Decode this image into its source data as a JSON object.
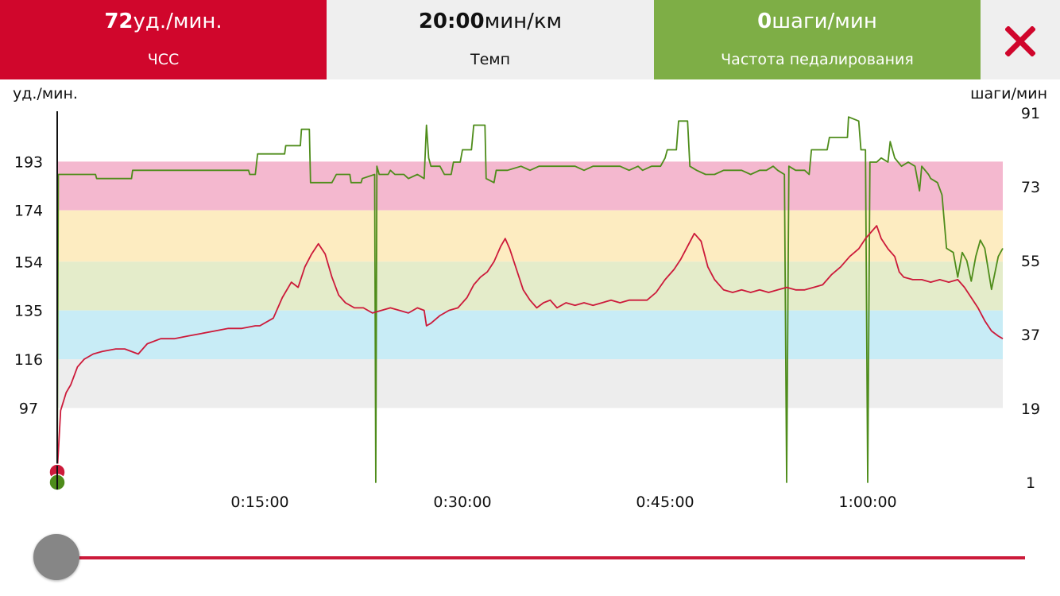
{
  "header": {
    "hr": {
      "value": "72",
      "unit": "уд./мин.",
      "label": "ЧСС",
      "color": "#d0062c"
    },
    "pace": {
      "value": "20:00",
      "unit": "мин/км",
      "label": "Темп",
      "color": "#efefef"
    },
    "cadence": {
      "value": "0",
      "unit": "шаги/мин",
      "label": "Частота педалирования",
      "color": "#7eae46"
    },
    "close_icon": "close-x-icon",
    "close_color": "#d0062c"
  },
  "slider": {
    "position": 0
  },
  "chart_data": {
    "type": "line",
    "left_axis_label": "уд./мин.",
    "right_axis_label": "шаги/мин",
    "left_ticks": [
      193,
      174,
      154,
      135,
      116,
      97
    ],
    "right_ticks": [
      91,
      73,
      55,
      37,
      19,
      1
    ],
    "ylim_left": [
      68,
      212
    ],
    "ylim_right": [
      1,
      91
    ],
    "x_ticks": [
      "0:15:00",
      "0:30:00",
      "0:45:00",
      "1:00:00"
    ],
    "x_tick_seconds": [
      900,
      1800,
      2700,
      3600
    ],
    "xlim_seconds": [
      0,
      4200
    ],
    "zones": [
      {
        "from": 174,
        "to": 193,
        "color": "#f4b8cf"
      },
      {
        "from": 154,
        "to": 174,
        "color": "#fdecc1"
      },
      {
        "from": 135,
        "to": 154,
        "color": "#e4ecca"
      },
      {
        "from": 116,
        "to": 135,
        "color": "#c8ecf6"
      },
      {
        "from": 97,
        "to": 116,
        "color": "#ededed"
      }
    ],
    "series": [
      {
        "key": "hr",
        "color": "#cc1a3a",
        "axis": "left",
        "points": [
          [
            0,
            72
          ],
          [
            15,
            96
          ],
          [
            40,
            103
          ],
          [
            60,
            106
          ],
          [
            90,
            113
          ],
          [
            120,
            116
          ],
          [
            160,
            118
          ],
          [
            200,
            119
          ],
          [
            260,
            120
          ],
          [
            300,
            120
          ],
          [
            360,
            118
          ],
          [
            400,
            122
          ],
          [
            460,
            124
          ],
          [
            520,
            124
          ],
          [
            580,
            125
          ],
          [
            640,
            126
          ],
          [
            700,
            127
          ],
          [
            760,
            128
          ],
          [
            820,
            128
          ],
          [
            880,
            129
          ],
          [
            900,
            129
          ],
          [
            960,
            132
          ],
          [
            1000,
            140
          ],
          [
            1040,
            146
          ],
          [
            1070,
            144
          ],
          [
            1100,
            152
          ],
          [
            1130,
            157
          ],
          [
            1160,
            161
          ],
          [
            1190,
            157
          ],
          [
            1220,
            148
          ],
          [
            1250,
            141
          ],
          [
            1280,
            138
          ],
          [
            1320,
            136
          ],
          [
            1360,
            136
          ],
          [
            1400,
            134
          ],
          [
            1440,
            135
          ],
          [
            1480,
            136
          ],
          [
            1520,
            135
          ],
          [
            1560,
            134
          ],
          [
            1600,
            136
          ],
          [
            1630,
            135
          ],
          [
            1640,
            129
          ],
          [
            1660,
            130
          ],
          [
            1700,
            133
          ],
          [
            1740,
            135
          ],
          [
            1780,
            136
          ],
          [
            1820,
            140
          ],
          [
            1850,
            145
          ],
          [
            1880,
            148
          ],
          [
            1910,
            150
          ],
          [
            1940,
            154
          ],
          [
            1970,
            160
          ],
          [
            1990,
            163
          ],
          [
            2010,
            159
          ],
          [
            2040,
            151
          ],
          [
            2070,
            143
          ],
          [
            2100,
            139
          ],
          [
            2130,
            136
          ],
          [
            2160,
            138
          ],
          [
            2190,
            139
          ],
          [
            2220,
            136
          ],
          [
            2260,
            138
          ],
          [
            2300,
            137
          ],
          [
            2340,
            138
          ],
          [
            2380,
            137
          ],
          [
            2420,
            138
          ],
          [
            2460,
            139
          ],
          [
            2500,
            138
          ],
          [
            2540,
            139
          ],
          [
            2580,
            139
          ],
          [
            2620,
            139
          ],
          [
            2660,
            142
          ],
          [
            2700,
            147
          ],
          [
            2740,
            151
          ],
          [
            2770,
            155
          ],
          [
            2800,
            160
          ],
          [
            2830,
            165
          ],
          [
            2860,
            162
          ],
          [
            2890,
            152
          ],
          [
            2920,
            147
          ],
          [
            2960,
            143
          ],
          [
            3000,
            142
          ],
          [
            3040,
            143
          ],
          [
            3080,
            142
          ],
          [
            3120,
            143
          ],
          [
            3160,
            142
          ],
          [
            3200,
            143
          ],
          [
            3240,
            144
          ],
          [
            3280,
            143
          ],
          [
            3320,
            143
          ],
          [
            3360,
            144
          ],
          [
            3400,
            145
          ],
          [
            3440,
            149
          ],
          [
            3480,
            152
          ],
          [
            3520,
            156
          ],
          [
            3560,
            159
          ],
          [
            3590,
            163
          ],
          [
            3620,
            166
          ],
          [
            3640,
            168
          ],
          [
            3660,
            163
          ],
          [
            3690,
            159
          ],
          [
            3720,
            156
          ],
          [
            3740,
            150
          ],
          [
            3760,
            148
          ],
          [
            3800,
            147
          ],
          [
            3840,
            147
          ],
          [
            3880,
            146
          ],
          [
            3920,
            147
          ],
          [
            3960,
            146
          ],
          [
            4000,
            147
          ],
          [
            4030,
            144
          ],
          [
            4060,
            140
          ],
          [
            4090,
            136
          ],
          [
            4120,
            131
          ],
          [
            4150,
            127
          ],
          [
            4180,
            125
          ],
          [
            4200,
            124
          ]
        ]
      },
      {
        "key": "cadence",
        "color": "#4e8c1a",
        "axis": "right",
        "points": [
          [
            0,
            1
          ],
          [
            5,
            76
          ],
          [
            30,
            76
          ],
          [
            170,
            76
          ],
          [
            175,
            75
          ],
          [
            330,
            75
          ],
          [
            335,
            77
          ],
          [
            850,
            77
          ],
          [
            855,
            76
          ],
          [
            880,
            76
          ],
          [
            890,
            81
          ],
          [
            1010,
            81
          ],
          [
            1015,
            83
          ],
          [
            1080,
            83
          ],
          [
            1085,
            87
          ],
          [
            1120,
            87
          ],
          [
            1125,
            74
          ],
          [
            1220,
            74
          ],
          [
            1240,
            76
          ],
          [
            1300,
            76
          ],
          [
            1305,
            74
          ],
          [
            1350,
            74
          ],
          [
            1355,
            75
          ],
          [
            1410,
            76
          ],
          [
            1415,
            1
          ],
          [
            1420,
            78
          ],
          [
            1430,
            76
          ],
          [
            1470,
            76
          ],
          [
            1480,
            77
          ],
          [
            1500,
            76
          ],
          [
            1540,
            76
          ],
          [
            1560,
            75
          ],
          [
            1600,
            76
          ],
          [
            1630,
            75
          ],
          [
            1640,
            88
          ],
          [
            1650,
            80
          ],
          [
            1660,
            78
          ],
          [
            1700,
            78
          ],
          [
            1720,
            76
          ],
          [
            1750,
            76
          ],
          [
            1760,
            79
          ],
          [
            1790,
            79
          ],
          [
            1800,
            82
          ],
          [
            1820,
            82
          ],
          [
            1840,
            82
          ],
          [
            1850,
            88
          ],
          [
            1900,
            88
          ],
          [
            1905,
            75
          ],
          [
            1940,
            74
          ],
          [
            1950,
            77
          ],
          [
            2000,
            77
          ],
          [
            2060,
            78
          ],
          [
            2100,
            77
          ],
          [
            2140,
            78
          ],
          [
            2180,
            78
          ],
          [
            2220,
            78
          ],
          [
            2260,
            78
          ],
          [
            2300,
            78
          ],
          [
            2340,
            77
          ],
          [
            2380,
            78
          ],
          [
            2420,
            78
          ],
          [
            2460,
            78
          ],
          [
            2500,
            78
          ],
          [
            2540,
            77
          ],
          [
            2580,
            78
          ],
          [
            2600,
            77
          ],
          [
            2640,
            78
          ],
          [
            2680,
            78
          ],
          [
            2700,
            80
          ],
          [
            2710,
            82
          ],
          [
            2750,
            82
          ],
          [
            2760,
            89
          ],
          [
            2800,
            89
          ],
          [
            2810,
            78
          ],
          [
            2840,
            77
          ],
          [
            2880,
            76
          ],
          [
            2920,
            76
          ],
          [
            2960,
            77
          ],
          [
            3000,
            77
          ],
          [
            3040,
            77
          ],
          [
            3080,
            76
          ],
          [
            3120,
            77
          ],
          [
            3150,
            77
          ],
          [
            3180,
            78
          ],
          [
            3200,
            77
          ],
          [
            3230,
            76
          ],
          [
            3240,
            1
          ],
          [
            3250,
            78
          ],
          [
            3280,
            77
          ],
          [
            3320,
            77
          ],
          [
            3340,
            76
          ],
          [
            3350,
            82
          ],
          [
            3420,
            82
          ],
          [
            3430,
            85
          ],
          [
            3510,
            85
          ],
          [
            3515,
            90
          ],
          [
            3560,
            89
          ],
          [
            3570,
            82
          ],
          [
            3590,
            82
          ],
          [
            3600,
            1
          ],
          [
            3610,
            79
          ],
          [
            3640,
            79
          ],
          [
            3660,
            80
          ],
          [
            3690,
            79
          ],
          [
            3700,
            84
          ],
          [
            3720,
            80
          ],
          [
            3750,
            78
          ],
          [
            3780,
            79
          ],
          [
            3810,
            78
          ],
          [
            3830,
            72
          ],
          [
            3840,
            78
          ],
          [
            3870,
            76
          ],
          [
            3880,
            75
          ],
          [
            3910,
            74
          ],
          [
            3930,
            71
          ],
          [
            3950,
            58
          ],
          [
            3980,
            57
          ],
          [
            4000,
            51
          ],
          [
            4020,
            57
          ],
          [
            4040,
            55
          ],
          [
            4060,
            50
          ],
          [
            4080,
            56
          ],
          [
            4100,
            60
          ],
          [
            4120,
            58
          ],
          [
            4150,
            48
          ],
          [
            4180,
            56
          ],
          [
            4200,
            58
          ]
        ]
      }
    ]
  }
}
